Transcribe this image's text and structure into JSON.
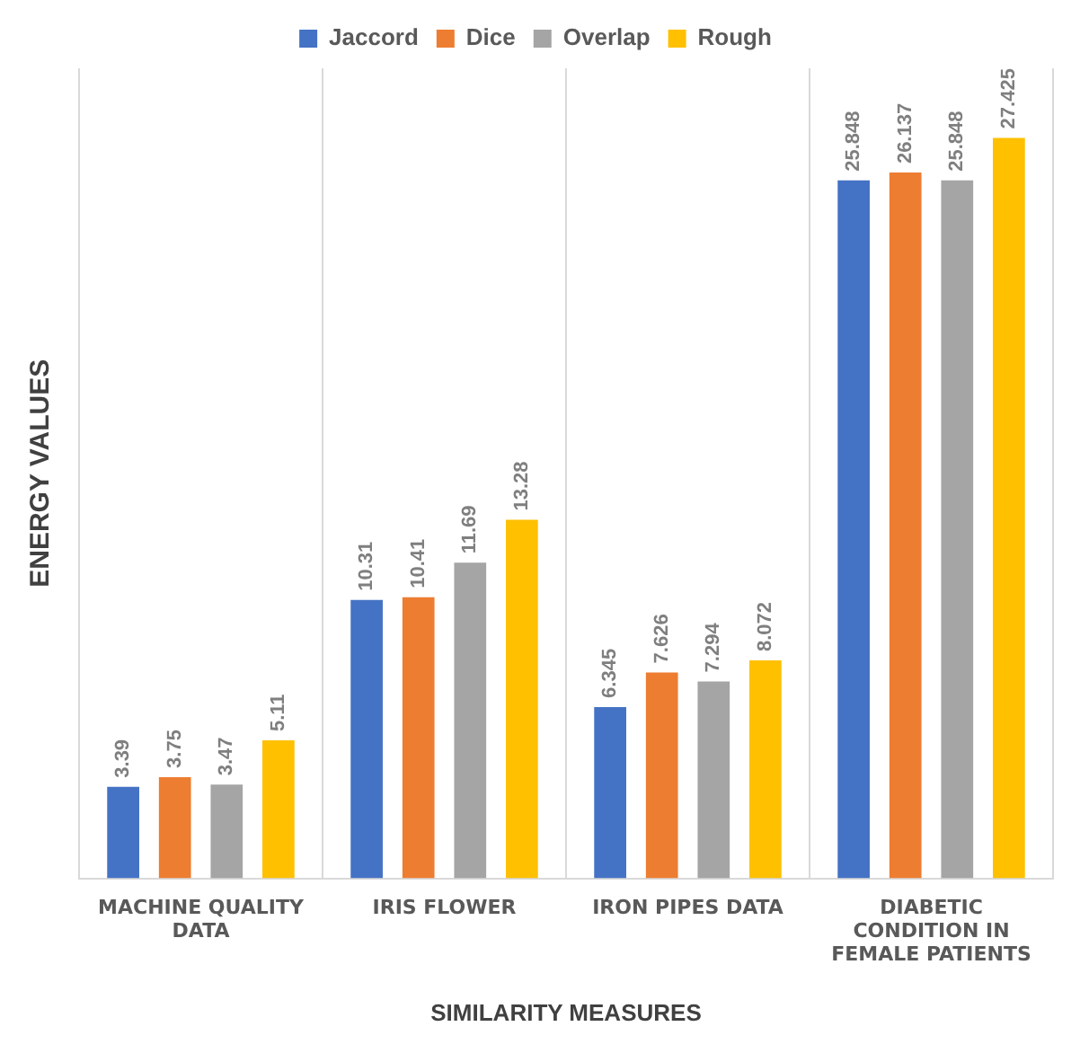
{
  "chart_data": {
    "type": "bar",
    "xlabel": "SIMILARITY MEASURES",
    "ylabel": "ENERGY VALUES",
    "categories": [
      "MACHINE QUALITY DATA",
      "IRIS FLOWER",
      "IRON PIPES DATA",
      "DIABETIC CONDITION IN FEMALE PATIENTS"
    ],
    "series": [
      {
        "name": "Jaccord",
        "color": "#4472c4",
        "values": [
          3.39,
          10.31,
          6.345,
          25.848
        ]
      },
      {
        "name": "Dice",
        "color": "#ed7d31",
        "values": [
          3.75,
          10.41,
          7.626,
          26.137
        ]
      },
      {
        "name": "Overlap",
        "color": "#a5a5a5",
        "values": [
          3.47,
          11.69,
          7.294,
          25.848
        ]
      },
      {
        "name": "Rough",
        "color": "#ffc000",
        "values": [
          5.11,
          13.28,
          8.072,
          27.425
        ]
      }
    ],
    "data_labels": true,
    "grid": "x",
    "legend": "top"
  }
}
